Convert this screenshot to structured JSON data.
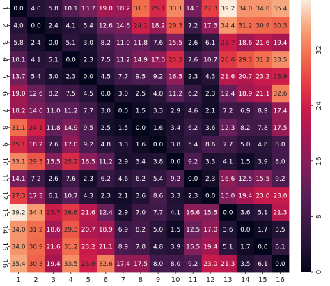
{
  "chart_data": {
    "type": "heatmap",
    "colormap": "rocket",
    "x_ticks": [
      "1",
      "2",
      "3",
      "4",
      "5",
      "6",
      "7",
      "8",
      "9",
      "10",
      "11",
      "12",
      "13",
      "14",
      "15",
      "16"
    ],
    "y_ticks": [
      "1",
      "2",
      "3",
      "4",
      "5",
      "6",
      "7",
      "8",
      "9",
      "10",
      "11",
      "12",
      "13",
      "14",
      "15",
      "16"
    ],
    "value_range": [
      0,
      39.2
    ],
    "colorbar_ticks": [
      0,
      8,
      16,
      24,
      32
    ],
    "matrix": [
      [
        0.0,
        4.0,
        5.8,
        10.1,
        13.7,
        19.0,
        18.2,
        31.1,
        25.1,
        33.1,
        14.1,
        27.3,
        39.2,
        34.0,
        34.0,
        35.4
      ],
      [
        4.0,
        0.0,
        2.4,
        4.1,
        5.4,
        12.6,
        14.6,
        24.1,
        18.2,
        29.3,
        7.2,
        17.3,
        34.4,
        31.2,
        30.9,
        30.3
      ],
      [
        5.8,
        2.4,
        0.0,
        5.1,
        3.0,
        8.2,
        11.0,
        11.8,
        7.6,
        15.5,
        2.6,
        6.1,
        23.7,
        18.6,
        21.6,
        19.4
      ],
      [
        10.1,
        4.1,
        5.1,
        0.0,
        2.3,
        7.5,
        11.2,
        14.9,
        17.0,
        25.2,
        7.6,
        10.7,
        26.6,
        29.3,
        31.2,
        33.5
      ],
      [
        13.7,
        5.4,
        3.0,
        2.3,
        0.0,
        4.5,
        7.7,
        9.5,
        9.2,
        16.5,
        2.3,
        4.3,
        21.6,
        20.7,
        23.2,
        23.9
      ],
      [
        19.0,
        12.6,
        8.2,
        7.5,
        4.5,
        0.0,
        3.0,
        2.5,
        4.8,
        11.2,
        6.2,
        2.3,
        12.4,
        18.9,
        21.1,
        32.6
      ],
      [
        18.2,
        14.6,
        11.0,
        11.2,
        7.7,
        3.0,
        0.0,
        1.5,
        3.3,
        2.9,
        4.6,
        2.1,
        7.2,
        6.9,
        8.9,
        17.4
      ],
      [
        31.1,
        24.1,
        11.8,
        14.9,
        9.5,
        2.5,
        1.5,
        0.0,
        1.6,
        3.4,
        6.2,
        3.6,
        12.3,
        8.2,
        7.8,
        17.5
      ],
      [
        25.1,
        18.2,
        7.6,
        17.0,
        9.2,
        4.8,
        3.3,
        1.6,
        0.0,
        3.8,
        5.4,
        8.6,
        7.7,
        5.0,
        4.8,
        8.0
      ],
      [
        33.1,
        29.3,
        15.5,
        25.2,
        16.5,
        11.2,
        2.9,
        3.4,
        3.8,
        0.0,
        9.2,
        3.3,
        4.1,
        1.5,
        3.9,
        8.0
      ],
      [
        14.1,
        7.2,
        2.6,
        7.6,
        2.3,
        6.2,
        4.6,
        6.2,
        5.4,
        9.2,
        0.0,
        2.3,
        16.6,
        12.5,
        15.5,
        9.2
      ],
      [
        27.3,
        17.3,
        6.1,
        10.7,
        4.3,
        2.3,
        2.1,
        3.6,
        8.6,
        3.3,
        2.3,
        0.0,
        15.0,
        19.4,
        23.0,
        23.0
      ],
      [
        39.2,
        34.4,
        23.7,
        26.6,
        21.6,
        12.4,
        2.9,
        7.0,
        7.7,
        4.1,
        16.6,
        15.5,
        0.0,
        3.6,
        5.1,
        21.3
      ],
      [
        34.0,
        31.2,
        18.6,
        29.3,
        20.7,
        18.9,
        6.9,
        8.2,
        5.0,
        1.5,
        12.5,
        17.0,
        3.6,
        0.0,
        1.7,
        3.5
      ],
      [
        34.0,
        30.9,
        21.6,
        31.2,
        23.2,
        21.1,
        8.9,
        7.8,
        4.8,
        3.9,
        15.5,
        19.4,
        5.1,
        1.7,
        0.0,
        6.1
      ],
      [
        35.4,
        30.3,
        19.4,
        33.5,
        23.9,
        32.6,
        17.4,
        17.5,
        8.0,
        8.0,
        9.2,
        23.0,
        21.3,
        3.5,
        6.1,
        0.0
      ]
    ],
    "title": "",
    "xlabel": "",
    "ylabel": ""
  }
}
